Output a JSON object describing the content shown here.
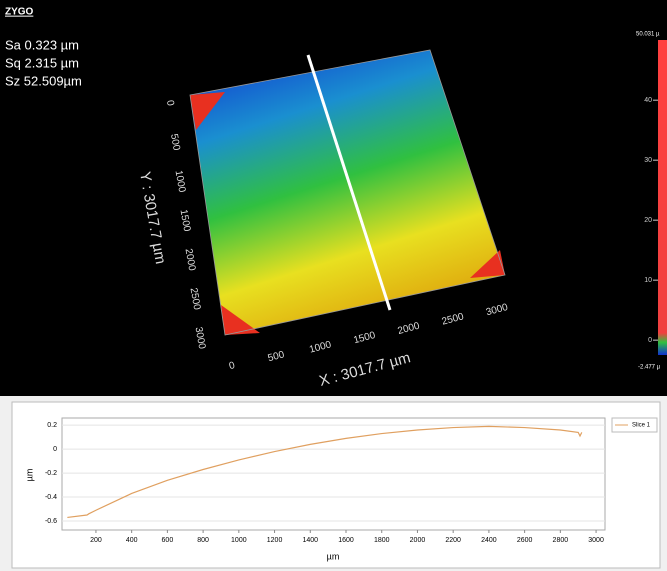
{
  "header": {
    "logo": "ZYGO",
    "stats": [
      "Sa 0.323  µm",
      "Sq 2.315  µm",
      "Sz 52.509µm"
    ]
  },
  "view3d": {
    "x_title": "X : 3017.7 µm",
    "y_title": "Y : 3017.7 µm",
    "x_ticks": [
      0,
      500,
      1000,
      1500,
      2000,
      2500,
      3000
    ],
    "y_ticks": [
      0,
      500,
      1000,
      1500,
      2000,
      2500,
      3000
    ],
    "colorbar": {
      "max": {
        "value": 50.031,
        "label": "50.031 µ"
      },
      "min": {
        "value": -2.477,
        "label": "-2.477 µ"
      },
      "ticks": [
        40,
        30,
        20,
        10,
        0
      ]
    }
  },
  "chart_data": {
    "type": "line",
    "x_label": "µm",
    "y_label": "µm",
    "x": [
      40,
      150,
      160,
      200,
      400,
      600,
      800,
      1000,
      1200,
      1400,
      1600,
      1800,
      2000,
      2200,
      2400,
      2600,
      2800,
      2900,
      2910,
      2920
    ],
    "series": [
      {
        "name": "Slice 1",
        "color": "#e0a060",
        "values": [
          -0.57,
          -0.55,
          -0.54,
          -0.51,
          -0.37,
          -0.26,
          -0.17,
          -0.09,
          -0.02,
          0.04,
          0.09,
          0.13,
          0.16,
          0.18,
          0.19,
          0.18,
          0.16,
          0.14,
          0.11,
          0.14
        ]
      }
    ],
    "xlim": [
      10,
      3050
    ],
    "ylim": [
      -0.675,
      0.26
    ],
    "xticks": [
      200,
      400,
      600,
      800,
      1000,
      1200,
      1400,
      1600,
      1800,
      2000,
      2200,
      2400,
      2600,
      2800,
      3000
    ],
    "yticks": [
      0.2,
      0,
      -0.2,
      -0.4,
      -0.6
    ],
    "grid": true
  }
}
